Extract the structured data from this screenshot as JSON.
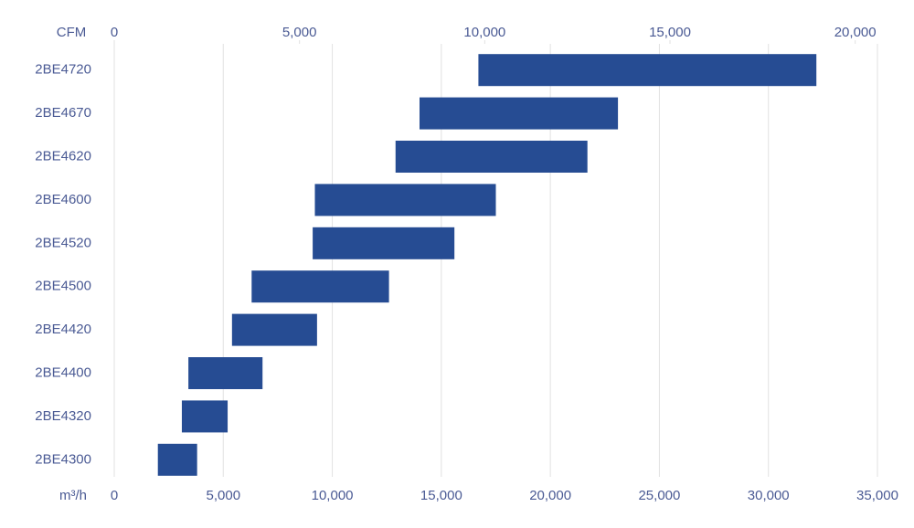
{
  "chart_data": {
    "type": "range-bar",
    "categories": [
      "2BE4720",
      "2BE4670",
      "2BE4620",
      "2BE4600",
      "2BE4520",
      "2BE4500",
      "2BE4420",
      "2BE4400",
      "2BE4320",
      "2BE4300"
    ],
    "values": [
      [
        16700,
        32200
      ],
      [
        14000,
        23100
      ],
      [
        12900,
        21700
      ],
      [
        9200,
        17500
      ],
      [
        9100,
        15600
      ],
      [
        6300,
        12600
      ],
      [
        5400,
        9300
      ],
      [
        3400,
        6800
      ],
      [
        3100,
        5200
      ],
      [
        2000,
        3800
      ]
    ],
    "color": "#264c93",
    "xlabel": "m³/h",
    "xlim": [
      0,
      35000
    ],
    "xticks": [
      0,
      {
        "value": 5000,
        "label": "5,000"
      },
      {
        "value": 10000,
        "label": "10,000"
      },
      {
        "value": 15000,
        "label": "15,000"
      },
      {
        "value": 20000,
        "label": "20,000"
      },
      {
        "value": 25000,
        "label": "25,000"
      },
      {
        "value": 30000,
        "label": "30,000"
      },
      {
        "value": 35000,
        "label": "35,000"
      }
    ],
    "x2label": "CFM",
    "x2lim": [
      0,
      20600
    ],
    "x2ticks": [
      0,
      {
        "value": 5000,
        "label": "5,000"
      },
      {
        "value": 10000,
        "label": "10,000"
      },
      {
        "value": 15000,
        "label": "15,000"
      },
      {
        "value": 20000,
        "label": "20,000"
      }
    ],
    "grid": true
  }
}
